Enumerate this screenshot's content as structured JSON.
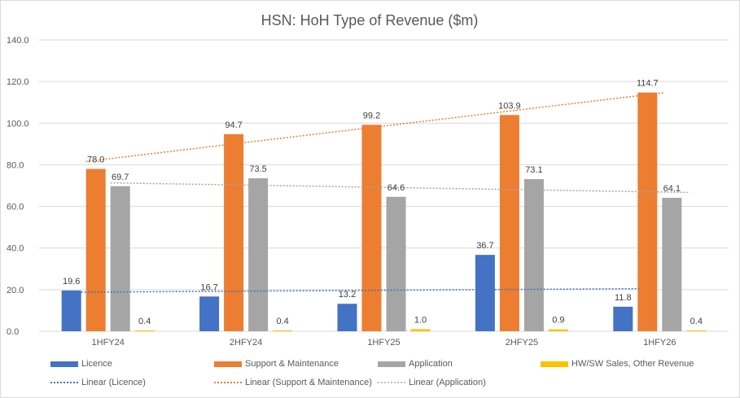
{
  "chart_data": {
    "type": "bar",
    "title": "HSN: HoH Type of Revenue ($m)",
    "xlabel": "",
    "ylabel": "",
    "ylim": [
      0,
      140
    ],
    "yticks": [
      "0.0",
      "20.0",
      "40.0",
      "60.0",
      "80.0",
      "100.0",
      "120.0",
      "140.0"
    ],
    "grid": true,
    "legend_position": "bottom",
    "categories": [
      "1HFY24",
      "2HFY24",
      "1HFY25",
      "2HFY25",
      "1HFY26"
    ],
    "series": [
      {
        "name": "Licence",
        "color": "#4472c4",
        "values": [
          19.6,
          16.7,
          13.2,
          36.7,
          11.8
        ]
      },
      {
        "name": "Support & Maintenance",
        "color": "#ed7d31",
        "values": [
          78.0,
          94.7,
          99.2,
          103.9,
          114.7
        ]
      },
      {
        "name": "Application",
        "color": "#a5a5a5",
        "values": [
          69.7,
          73.5,
          64.6,
          73.1,
          64.1
        ]
      },
      {
        "name": "HW/SW Sales, Other Revenue",
        "color": "#ffc000",
        "values": [
          0.4,
          0.4,
          1.0,
          0.9,
          0.4
        ]
      }
    ],
    "trendlines": [
      {
        "name": "Linear (Licence)",
        "series": 0,
        "color": "#4472c4"
      },
      {
        "name": "Linear (Support & Maintenance)",
        "series": 1,
        "color": "#ed7d31"
      },
      {
        "name": "Linear (Application)",
        "series": 2,
        "color": "#a5a5a5"
      }
    ]
  }
}
